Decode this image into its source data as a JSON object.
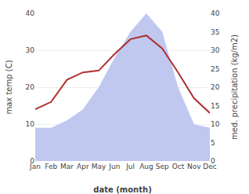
{
  "chart_data": {
    "type": "line",
    "categories": [
      "Jan",
      "Feb",
      "Mar",
      "Apr",
      "May",
      "Jun",
      "Jul",
      "Aug",
      "Sep",
      "Oct",
      "Nov",
      "Dec"
    ],
    "series": [
      {
        "type": "area",
        "color": "#c0c8f0",
        "axis": "y2",
        "values": [
          9,
          9,
          11,
          14,
          20,
          28,
          35,
          40,
          35,
          20,
          10,
          9
        ]
      },
      {
        "type": "line",
        "color": "#b03030",
        "values": [
          14,
          16,
          22,
          24,
          24.5,
          29,
          33,
          34,
          30.5,
          24,
          17,
          13
        ]
      }
    ],
    "xlabel": "date (month)",
    "ylabel": "max temp (C)",
    "y2label": "med. precipitation (kg/m2)",
    "ylim": [
      0,
      40
    ],
    "yticks": [
      0,
      10,
      20,
      30,
      40
    ],
    "y2lim": [
      0,
      40
    ],
    "y2ticks": [
      0,
      5,
      10,
      15,
      20,
      25,
      30,
      35,
      40
    ],
    "grid": true
  }
}
